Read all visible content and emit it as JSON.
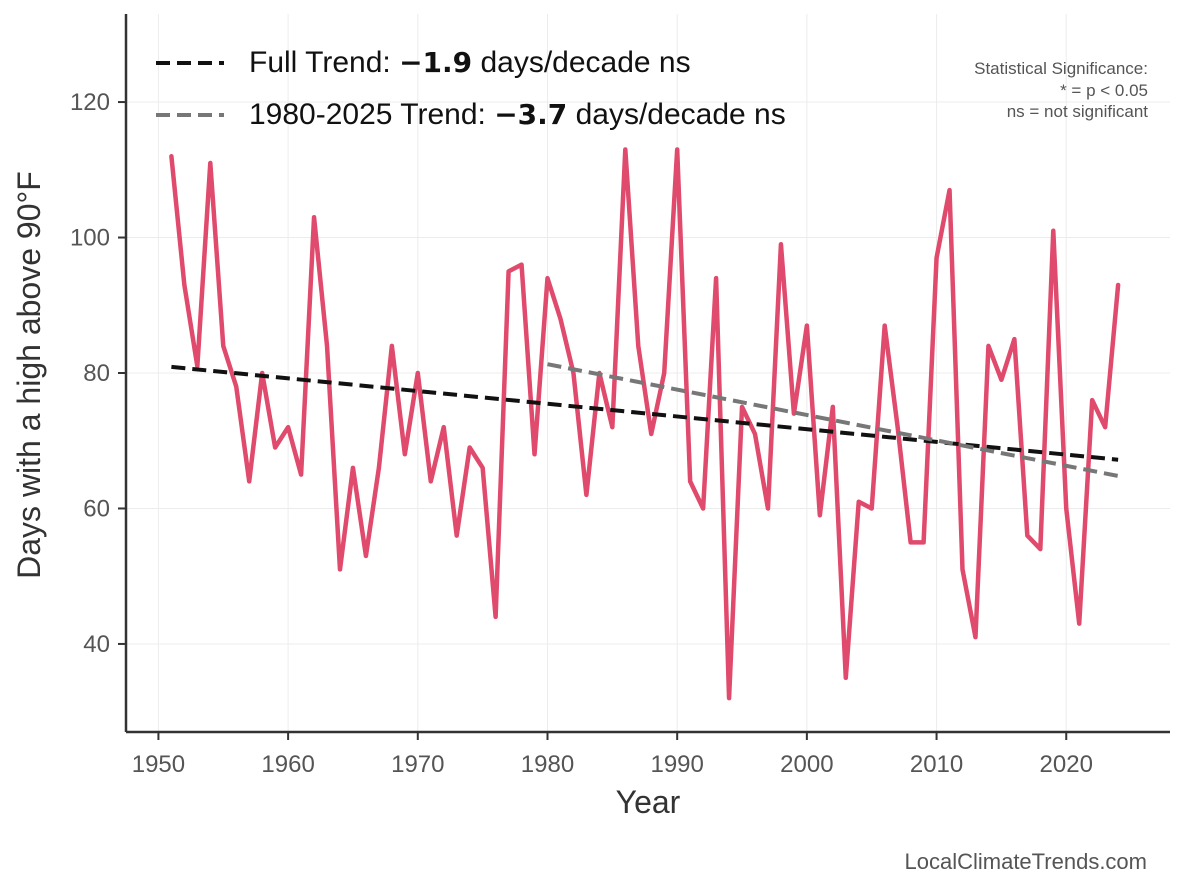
{
  "chart_data": {
    "type": "line",
    "xlabel": "Year",
    "ylabel": "Days with a high above 90°F",
    "xlim": [
      1947.5,
      2028
    ],
    "ylim": [
      27,
      133
    ],
    "xticks": [
      1950,
      1960,
      1970,
      1980,
      1990,
      2000,
      2010,
      2020
    ],
    "yticks": [
      40,
      60,
      80,
      100,
      120
    ],
    "series": [
      {
        "name": "Days with a high above 90°F",
        "color": "#e04a6c",
        "x": [
          1951,
          1952,
          1953,
          1954,
          1955,
          1956,
          1957,
          1958,
          1959,
          1960,
          1961,
          1962,
          1963,
          1964,
          1965,
          1966,
          1967,
          1968,
          1969,
          1970,
          1971,
          1972,
          1973,
          1974,
          1975,
          1976,
          1977,
          1978,
          1979,
          1980,
          1981,
          1982,
          1983,
          1984,
          1985,
          1986,
          1987,
          1988,
          1989,
          1990,
          1991,
          1992,
          1993,
          1994,
          1995,
          1996,
          1997,
          1998,
          1999,
          2000,
          2001,
          2002,
          2003,
          2004,
          2005,
          2006,
          2007,
          2008,
          2009,
          2010,
          2011,
          2012,
          2013,
          2014,
          2015,
          2016,
          2017,
          2018,
          2019,
          2020,
          2021,
          2022,
          2023,
          2024
        ],
        "values": [
          112,
          93,
          81,
          111,
          84,
          78,
          64,
          80,
          69,
          72,
          65,
          103,
          84,
          51,
          66,
          53,
          66,
          84,
          68,
          80,
          64,
          72,
          56,
          69,
          66,
          44,
          95,
          96,
          68,
          94,
          88,
          80,
          62,
          80,
          72,
          113,
          84,
          71,
          80,
          113,
          64,
          60,
          94,
          32,
          75,
          71,
          60,
          99,
          74,
          87,
          59,
          75,
          35,
          61,
          60,
          87,
          72,
          55,
          55,
          97,
          107,
          51,
          41,
          84,
          79,
          85,
          56,
          54,
          101,
          60,
          43,
          76,
          72,
          93
        ]
      }
    ],
    "trends": [
      {
        "name": "full-trend",
        "label_prefix": "Full Trend: ",
        "label_value": "−1.9",
        "label_suffix": " days/decade ns",
        "color": "#111111",
        "x": [
          1951,
          2024
        ],
        "y": [
          80.9,
          67.2
        ]
      },
      {
        "name": "recent-trend",
        "label_prefix": "1980-2025 Trend: ",
        "label_value": "−3.7",
        "label_suffix": " days/decade ns",
        "color": "#777777",
        "x": [
          1980,
          2024
        ],
        "y": [
          81.3,
          64.8
        ]
      }
    ],
    "significance_note": {
      "title": "Statistical Significance:",
      "line1": "* = p < 0.05",
      "line2": "ns = not significant"
    },
    "source": "LocalClimateTrends.com"
  }
}
